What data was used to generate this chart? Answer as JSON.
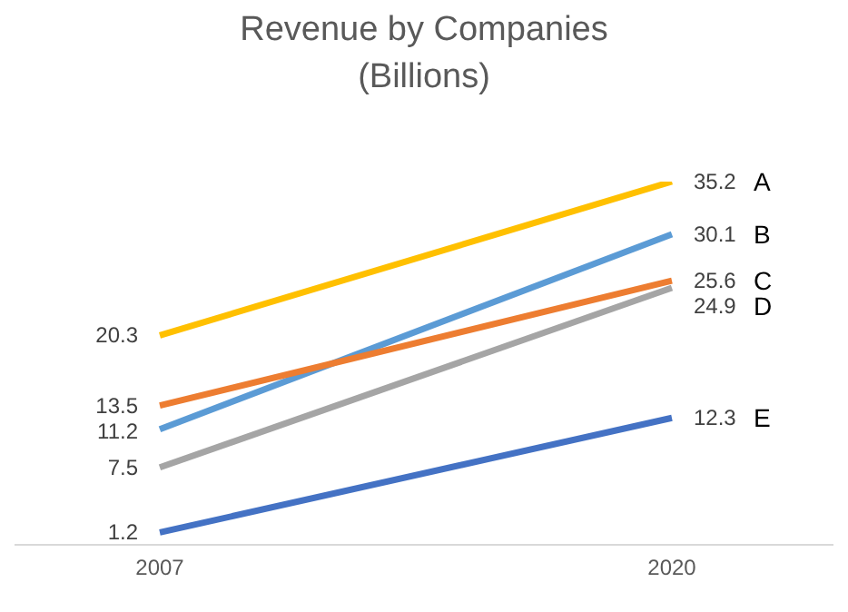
{
  "chart_data": {
    "type": "line",
    "title": "Revenue by Companies (Billions)",
    "categories": [
      "2007",
      "2020"
    ],
    "series": [
      {
        "name": "A",
        "color": "#ffc000",
        "values": [
          20.3,
          35.2
        ]
      },
      {
        "name": "B",
        "color": "#5b9bd5",
        "values": [
          11.2,
          30.1
        ]
      },
      {
        "name": "C",
        "color": "#ed7d31",
        "values": [
          13.5,
          25.6
        ]
      },
      {
        "name": "D",
        "color": "#a5a5a5",
        "values": [
          7.5,
          24.9
        ]
      },
      {
        "name": "E",
        "color": "#4472c4",
        "values": [
          1.2,
          12.3
        ]
      }
    ],
    "data_labels": true,
    "grid": false,
    "legend": false,
    "marker": "none",
    "line_style": "solid"
  }
}
